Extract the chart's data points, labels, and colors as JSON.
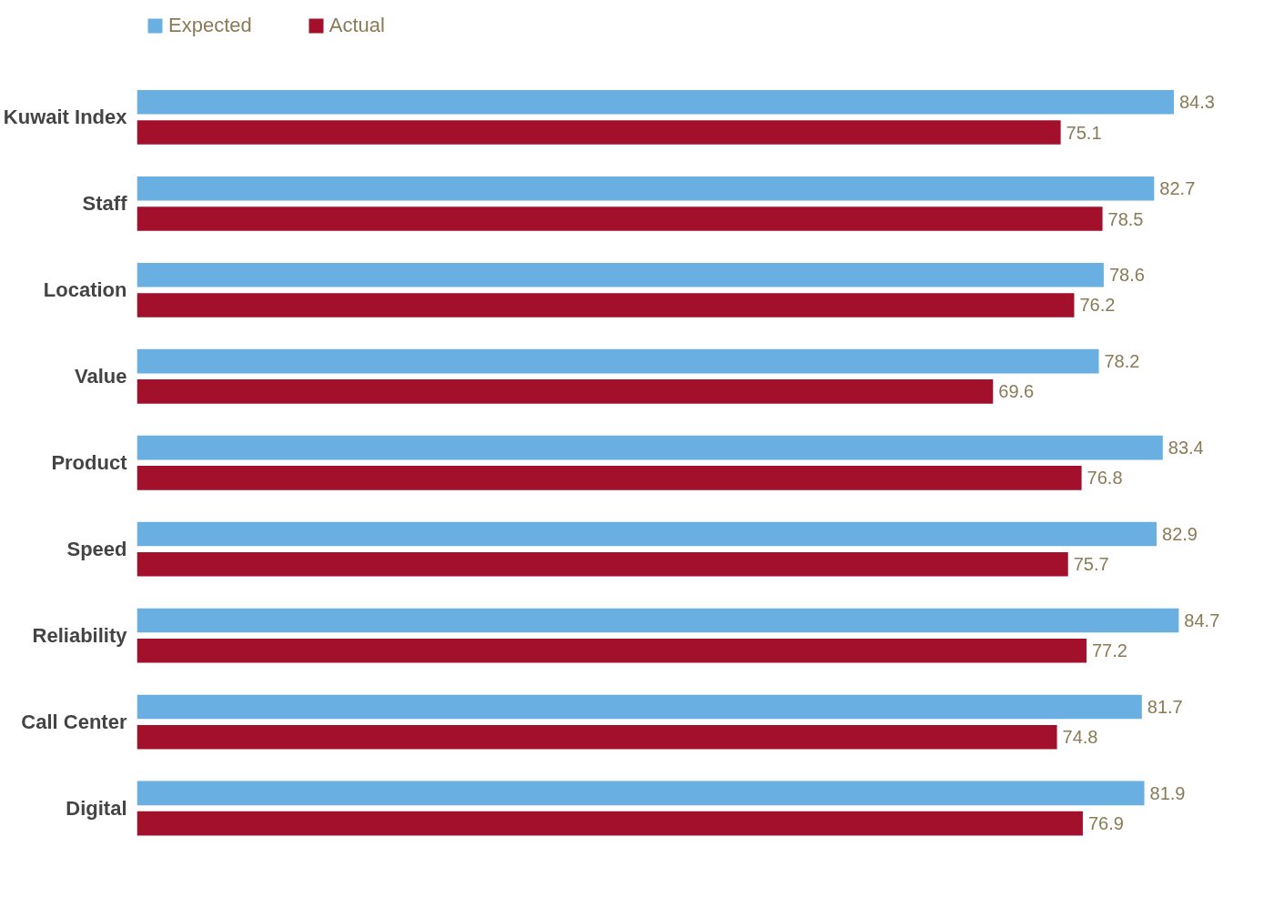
{
  "chart_data": {
    "type": "bar",
    "orientation": "horizontal",
    "categories": [
      "Kuwait Index",
      "Staff",
      "Location",
      "Value",
      "Product",
      "Speed",
      "Reliability",
      "Call Center",
      "Digital"
    ],
    "series": [
      {
        "name": "Expected",
        "color": "#6aafe2",
        "values": [
          84.3,
          82.7,
          78.6,
          78.2,
          83.4,
          82.9,
          84.7,
          81.7,
          81.9
        ]
      },
      {
        "name": "Actual",
        "color": "#a3102c",
        "values": [
          75.1,
          78.5,
          76.2,
          69.6,
          76.8,
          75.7,
          77.2,
          74.8,
          76.9
        ]
      }
    ],
    "data_labels": true,
    "legend": "top left",
    "grid": false,
    "tick_labels": "y"
  }
}
